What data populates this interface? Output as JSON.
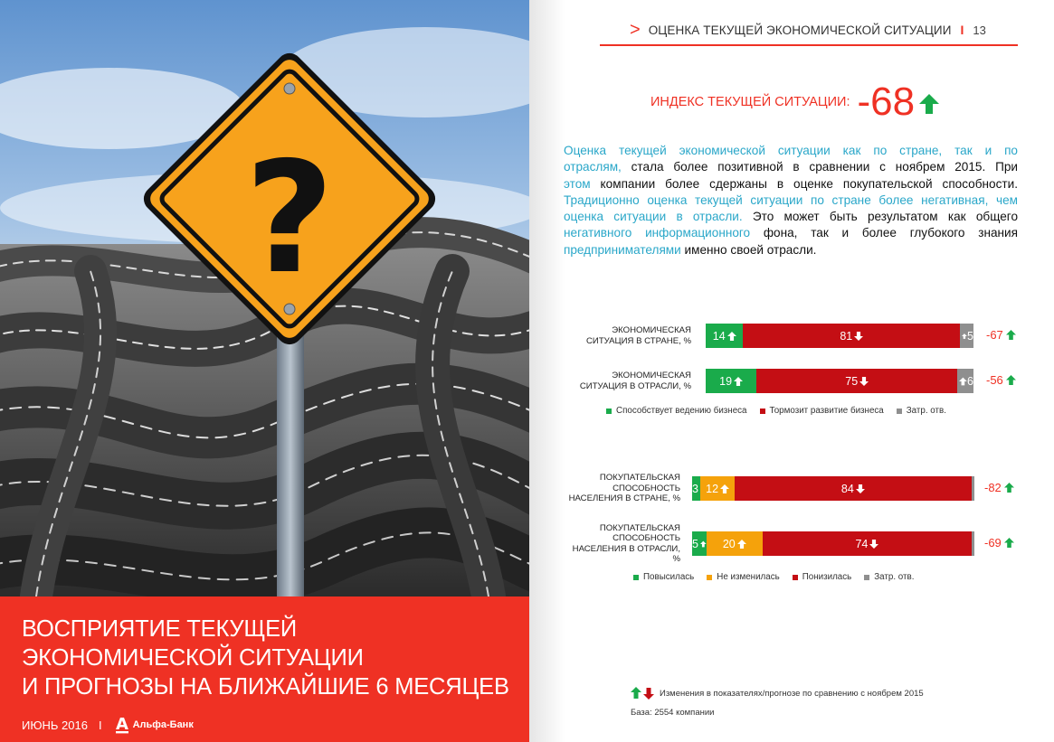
{
  "cover": {
    "title_lines": [
      "ВОСПРИЯТИЕ ТЕКУЩЕЙ",
      "ЭКОНОМИЧЕСКОЙ СИТУАЦИИ",
      "И ПРОГНОЗЫ НА БЛИЖАЙШИЕ 6 МЕСЯЦЕВ"
    ],
    "date": "ИЮНЬ 2016",
    "separator": "I",
    "bank_name": "Альфа-Банк",
    "bank_logo_letter": "А",
    "sign_glyph": "?"
  },
  "header": {
    "chevron": ">",
    "title": "ОЦЕНКА ТЕКУЩЕЙ ЭКОНОМИЧЕСКОЙ СИТУАЦИИ",
    "separator": "I",
    "page_number": "13"
  },
  "index": {
    "label": "ИНДЕКС ТЕКУЩЕЙ СИТУАЦИИ:",
    "value": "-68",
    "trend": "up"
  },
  "intro": {
    "text_lines": [
      {
        "turquoise": "Оценка текущей экономической ситуации как по стране, так и по",
        "black": ""
      },
      {
        "turquoise": "отраслям,",
        "black": " стала более позитивной в сравнении с ноябрем 2015. При"
      },
      {
        "turquoise": "этом",
        "black": " компании более сдержаны в оценке покупательской способности."
      },
      {
        "turquoise": "Традиционно оценка текущей ситуации по стране более негативная, чем",
        "black": ""
      },
      {
        "turquoise": "оценка ситуации в отрасли.",
        "black": " Это может быть результатом как общего"
      },
      {
        "turquoise": "негативного информационного",
        "black": " фона, так и более глубокого знания"
      },
      {
        "turquoise": "предпринимателями",
        "black": " именно своей отрасли."
      }
    ]
  },
  "colors": {
    "accent_red": "#ef3124",
    "green": "#1aab4b",
    "dark_red": "#c40e14",
    "orange": "#f5a20b",
    "gray": "#8f8f8f",
    "turquoise": "#2aa7c9"
  },
  "chart_data": [
    {
      "type": "bar",
      "orientation": "horizontal-stacked",
      "categories": [
        "ЭКОНОМИЧЕСКАЯ СИТУАЦИЯ В СТРАНЕ, %",
        "ЭКОНОМИЧЕСКАЯ СИТУАЦИЯ В ОТРАСЛИ, %"
      ],
      "category_lines": [
        [
          "ЭКОНОМИЧЕСКАЯ",
          "СИТУАЦИЯ В СТРАНЕ, %"
        ],
        [
          "ЭКОНОМИЧЕСКАЯ",
          "СИТУАЦИЯ В ОТРАСЛИ, %"
        ]
      ],
      "series": [
        {
          "name": "Способствует ведению бизнеса",
          "values": [
            14,
            19
          ],
          "trend": [
            "up",
            "up"
          ],
          "color": "#1aab4b",
          "label_shown": [
            true,
            true
          ]
        },
        {
          "name": "Тормозит развитие бизнеса",
          "values": [
            81,
            75
          ],
          "trend": [
            "down",
            "down"
          ],
          "color": "#c40e14",
          "label_shown": [
            true,
            true
          ]
        },
        {
          "name": "Затр. отв.",
          "values": [
            5,
            6
          ],
          "trend": [
            "up",
            "up"
          ],
          "color": "#8f8f8f",
          "label_shown": [
            true,
            true
          ]
        }
      ],
      "row_index": [
        "-67",
        "-56"
      ],
      "row_index_trend": [
        "up",
        "up"
      ],
      "xlim": [
        0,
        100
      ],
      "legend_position": "bottom"
    },
    {
      "type": "bar",
      "orientation": "horizontal-stacked",
      "categories": [
        "ПОКУПАТЕЛЬСКАЯ СПОСОБНОСТЬ НАСЕЛЕНИЯ В СТРАНЕ, %",
        "ПОКУПАТЕЛЬСКАЯ СПОСОБНОСТЬ НАСЕЛЕНИЯ В ОТРАСЛИ, %"
      ],
      "category_lines": [
        [
          "ПОКУПАТЕЛЬСКАЯ",
          "СПОСОБНОСТЬ",
          "НАСЕЛЕНИЯ В СТРАНЕ, %"
        ],
        [
          "ПОКУПАТЕЛЬСКАЯ",
          "СПОСОБНОСТЬ",
          "НАСЕЛЕНИЯ В ОТРАСЛИ,",
          "%"
        ]
      ],
      "series": [
        {
          "name": "Повысилась",
          "values": [
            3,
            5
          ],
          "trend": [
            "up",
            "up"
          ],
          "color": "#1aab4b",
          "label_shown": [
            true,
            true
          ]
        },
        {
          "name": "Не изменилась",
          "values": [
            12,
            20
          ],
          "trend": [
            "up",
            "up"
          ],
          "color": "#f5a20b",
          "label_shown": [
            true,
            true
          ]
        },
        {
          "name": "Понизилась",
          "values": [
            84,
            74
          ],
          "trend": [
            "down",
            "down"
          ],
          "color": "#c40e14",
          "label_shown": [
            true,
            true
          ]
        },
        {
          "name": "Затр. отв.",
          "values": [
            1,
            1
          ],
          "trend": [
            "none",
            "none"
          ],
          "color": "#8f8f8f",
          "label_shown": [
            false,
            false
          ]
        }
      ],
      "row_index": [
        "-82",
        "-69"
      ],
      "row_index_trend": [
        "up",
        "up"
      ],
      "xlim": [
        0,
        100
      ],
      "legend_position": "bottom"
    }
  ],
  "footnotes": {
    "changes_note": "Изменения в показателях/прогнозе по сравнению с ноябрем 2015",
    "base_note": "База: 2554 компании"
  }
}
